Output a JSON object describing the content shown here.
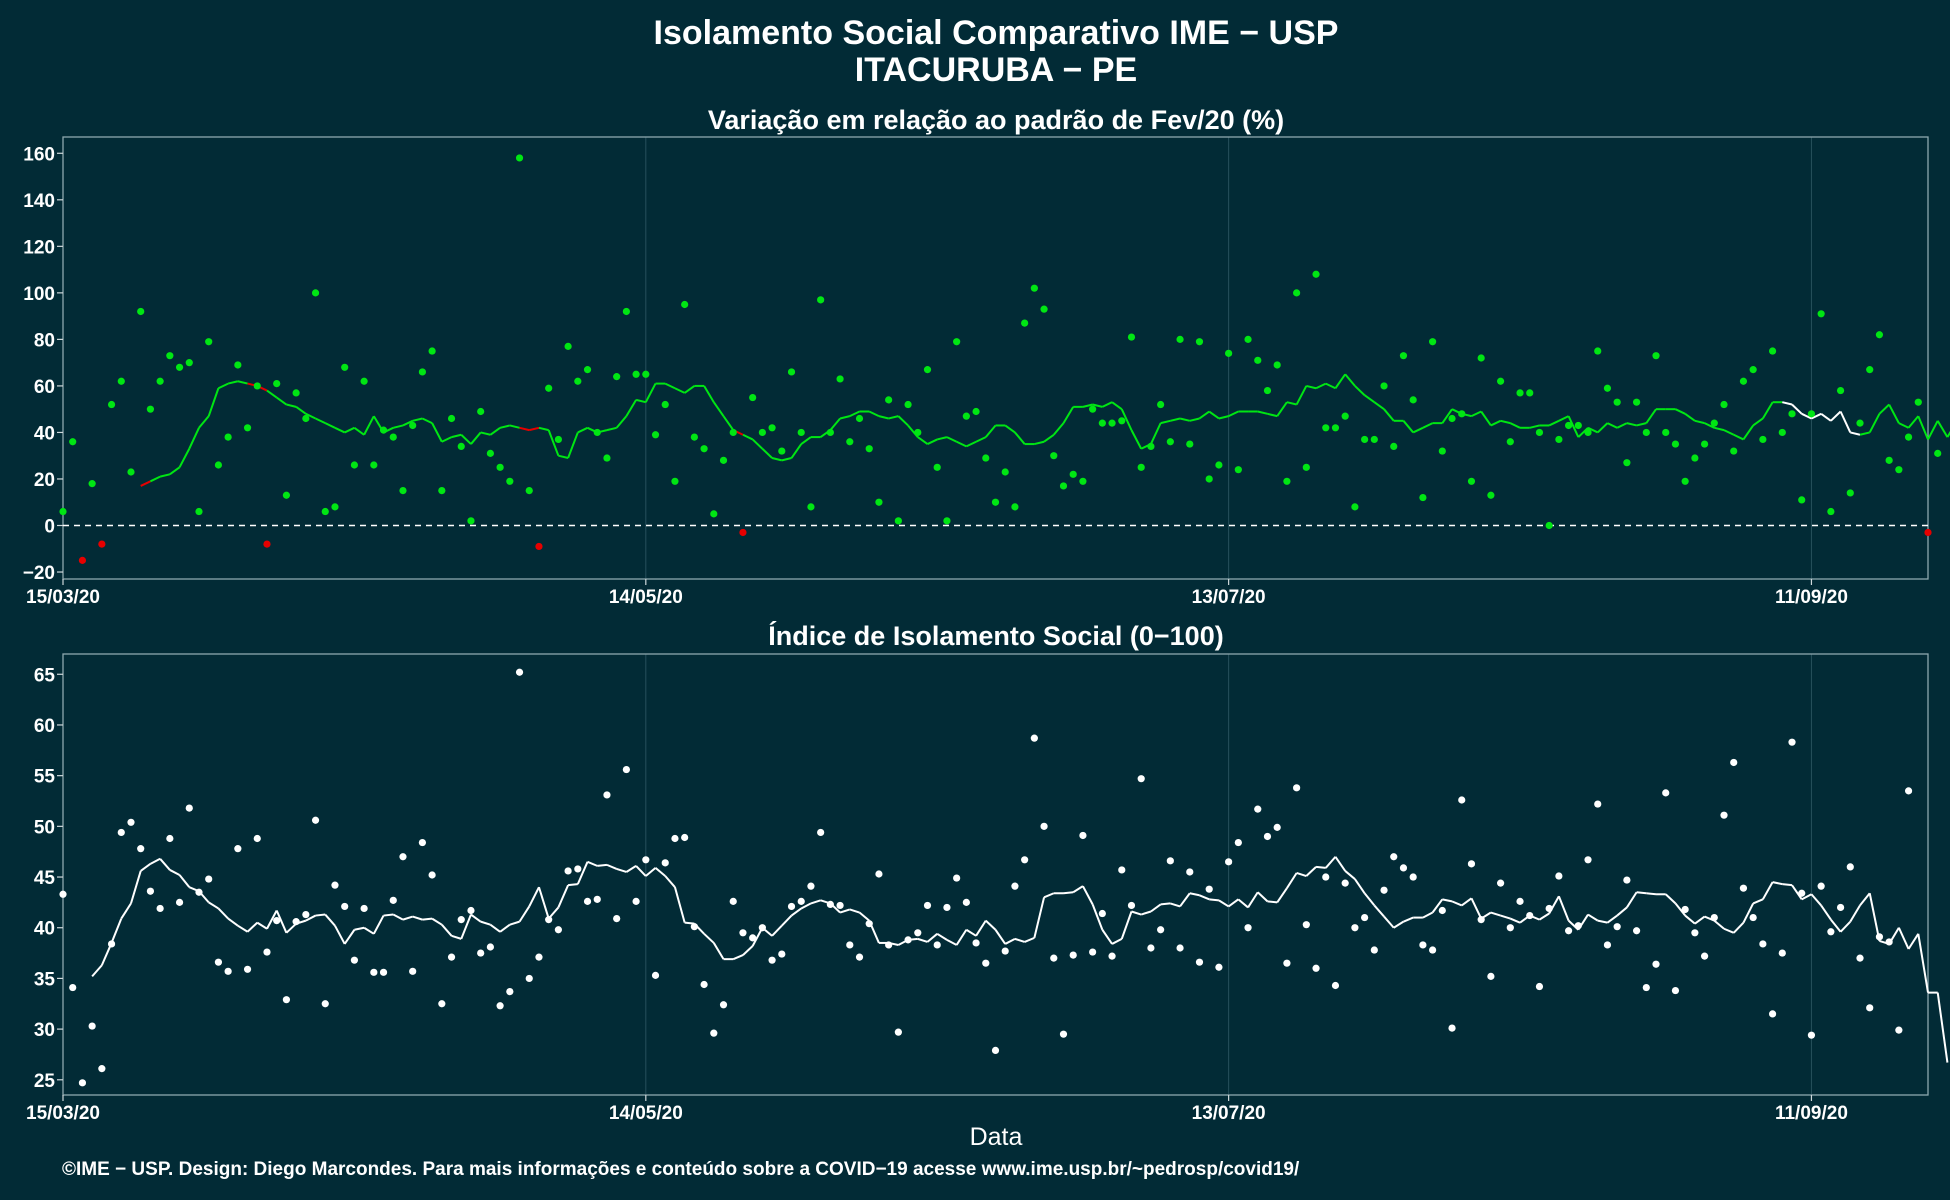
{
  "title": "Isolamento Social Comparativo IME − USP",
  "subtitle": "ITACURUBA − PE",
  "xlabel": "Data",
  "footer": "©IME − USP. Design: Diego Marcondes. Para mais informações e conteúdo sobre a COVID−19 acesse www.ime.usp.br/~pedrosp/covid19/",
  "colors": {
    "background": "#022b36",
    "positive": "#00e613",
    "negative": "#e60000",
    "index": "#ffffff"
  },
  "chart_data": [
    {
      "type": "scatter",
      "title": "Variação em relação ao padrão de Fev/20 (%)",
      "ylim": [
        -23,
        167
      ],
      "yticks": [
        -20,
        0,
        20,
        40,
        60,
        80,
        100,
        120,
        140,
        160
      ],
      "xticks": [
        {
          "day": 0,
          "label": "15/03/20"
        },
        {
          "day": 60,
          "label": "14/05/20"
        },
        {
          "day": 120,
          "label": "13/07/20"
        },
        {
          "day": 180,
          "label": "11/09/20"
        }
      ],
      "xlim": [
        0,
        192
      ],
      "reference_line": 0,
      "series": [
        {
          "values": [
            6,
            36,
            -15,
            18,
            -8,
            52,
            62,
            23,
            92,
            50,
            62,
            73,
            68,
            70,
            6,
            79,
            26,
            38,
            69,
            42,
            60,
            -8,
            61,
            13,
            57,
            46,
            100,
            6,
            8,
            68,
            26,
            62,
            26,
            41,
            38,
            15,
            43,
            66,
            75,
            15,
            46,
            34,
            2,
            49,
            31,
            25,
            19,
            158,
            15,
            -9,
            59,
            37,
            77,
            62,
            67,
            40,
            29,
            64,
            92,
            65,
            65,
            39,
            52,
            19,
            95,
            38,
            33,
            5,
            28,
            40,
            -3,
            55,
            40,
            42,
            32,
            66,
            40,
            8,
            97,
            40,
            63,
            36,
            46,
            33,
            10,
            54,
            2,
            52,
            40,
            67,
            25,
            2,
            79,
            47,
            49,
            29,
            10,
            23,
            8,
            87,
            102,
            93,
            30,
            17,
            22,
            19,
            50,
            44,
            44,
            45,
            81,
            25,
            34,
            52,
            36,
            80,
            35,
            79,
            20,
            26,
            74,
            24,
            80,
            71,
            58,
            69,
            19,
            100,
            25,
            108,
            42,
            42,
            47,
            8,
            37,
            37,
            60,
            34,
            73,
            54,
            12,
            79,
            32,
            46,
            48,
            19,
            72,
            13,
            62,
            36,
            57,
            57,
            40,
            0,
            37,
            43,
            43,
            40,
            75,
            59,
            53,
            27,
            53,
            40,
            73,
            40,
            35,
            19,
            29,
            35,
            44,
            52,
            32,
            62,
            67,
            37,
            75,
            40,
            48,
            11,
            48,
            91,
            6,
            58,
            14,
            44,
            67,
            82,
            28,
            24,
            38,
            53,
            -3,
            31
          ]
        },
        {
          "values": [
            null,
            null,
            null,
            null,
            null,
            null,
            null,
            null,
            17,
            19,
            21,
            22,
            25,
            33,
            42,
            47,
            59,
            61,
            62,
            61,
            60,
            58,
            55,
            52,
            51,
            48,
            46,
            44,
            42,
            40,
            42,
            39,
            47,
            40,
            42,
            43,
            45,
            46,
            44,
            36,
            38,
            39,
            35,
            40,
            39,
            42,
            43,
            42,
            41,
            42,
            41,
            30,
            29,
            40,
            42,
            40,
            41,
            42,
            47,
            54,
            53,
            61,
            61,
            59,
            57,
            60,
            60,
            53,
            47,
            41,
            39,
            37,
            33,
            29,
            28,
            29,
            35,
            38,
            38,
            41,
            46,
            47,
            49,
            49,
            47,
            46,
            47,
            43,
            38,
            35,
            37,
            38,
            36,
            34,
            36,
            38,
            43,
            43,
            40,
            35,
            35,
            36,
            39,
            44,
            51,
            51,
            52,
            51,
            53,
            50,
            41,
            33,
            35,
            44,
            45,
            46,
            45,
            46,
            49,
            46,
            47,
            49,
            49,
            49,
            48,
            47,
            53,
            52,
            60,
            59,
            61,
            59,
            65,
            60,
            56,
            53,
            50,
            45,
            45,
            40,
            42,
            44,
            44,
            50,
            48,
            47,
            49,
            43,
            45,
            44,
            42,
            42,
            43,
            43,
            45,
            47,
            38,
            42,
            40,
            44,
            42,
            44,
            43,
            44,
            50,
            50,
            50,
            48,
            45,
            44,
            42,
            41,
            39,
            37,
            43,
            46,
            53,
            53,
            52,
            48,
            46,
            48,
            45,
            49,
            40,
            39,
            40,
            48,
            52,
            44,
            42,
            47,
            37,
            45,
            38,
            45
          ]
        }
      ]
    },
    {
      "type": "scatter",
      "title": "Índice de Isolamento Social (0−100)",
      "ylim": [
        23.5,
        67
      ],
      "yticks": [
        25,
        30,
        35,
        40,
        45,
        50,
        55,
        60,
        65
      ],
      "xticks": [
        {
          "day": 0,
          "label": "15/03/20"
        },
        {
          "day": 60,
          "label": "14/05/20"
        },
        {
          "day": 120,
          "label": "13/07/20"
        },
        {
          "day": 180,
          "label": "11/09/20"
        }
      ],
      "xlim": [
        0,
        192
      ],
      "series": [
        {
          "values": [
            43.3,
            34.1,
            24.7,
            30.3,
            26.1,
            38.4,
            49.4,
            50.4,
            47.8,
            43.6,
            41.9,
            48.8,
            42.5,
            51.8,
            43.5,
            44.8,
            36.6,
            35.7,
            47.8,
            35.9,
            48.8,
            37.6,
            40.7,
            32.9,
            40.6,
            41.3,
            50.6,
            32.5,
            44.2,
            42.1,
            36.8,
            41.9,
            35.6,
            35.6,
            42.7,
            47.0,
            35.7,
            48.4,
            45.2,
            32.5,
            37.1,
            40.8,
            41.7,
            37.5,
            38.1,
            32.3,
            33.7,
            65.2,
            35.0,
            37.1,
            40.8,
            39.8,
            45.6,
            45.8,
            42.6,
            42.8,
            53.1,
            40.9,
            55.6,
            42.6,
            46.7,
            35.3,
            46.4,
            48.8,
            48.9,
            40.1,
            34.4,
            29.6,
            32.4,
            42.6,
            39.5,
            39.0,
            40.0,
            36.8,
            37.4,
            42.1,
            42.6,
            44.1,
            49.4,
            42.3,
            42.2,
            38.3,
            37.1,
            40.4,
            45.3,
            38.3,
            29.7,
            38.8,
            39.5,
            42.2,
            38.3,
            42.0,
            44.9,
            42.5,
            38.5,
            36.5,
            27.9,
            37.7,
            44.1,
            46.7,
            58.7,
            50.0,
            37.0,
            29.5,
            37.3,
            49.1,
            37.6,
            41.4,
            37.2,
            45.7,
            42.2,
            54.7,
            38.0,
            39.8,
            46.6,
            38.0,
            45.5,
            36.6,
            43.8,
            36.1,
            46.5,
            48.4,
            40.0,
            51.7,
            49.0,
            49.9,
            36.5,
            53.8,
            40.3,
            36.0,
            45.0,
            34.3,
            44.4,
            40.0,
            41.0,
            37.8,
            43.7,
            47.0,
            45.9,
            45.0,
            38.3,
            37.8,
            41.7,
            30.1,
            52.6,
            46.3,
            40.8,
            35.2,
            44.4,
            40.0,
            42.6,
            41.2,
            34.2,
            41.9,
            45.1,
            39.7,
            40.2,
            46.7,
            52.2,
            38.3,
            40.1,
            44.7,
            39.7,
            34.1,
            36.4,
            53.3,
            33.8,
            41.8,
            39.5,
            37.2,
            41.0,
            51.1,
            56.3,
            43.9,
            41.0,
            38.4,
            31.5,
            37.5,
            58.3,
            43.4,
            29.4,
            44.1,
            39.6,
            42.0,
            46.0,
            37.0,
            32.1,
            39.1,
            38.6,
            29.9,
            53.5
          ]
        },
        {
          "values": [
            null,
            null,
            null,
            35.2,
            36.3,
            38.5,
            40.9,
            42.4,
            45.6,
            46.3,
            46.8,
            45.7,
            45.2,
            44.0,
            43.6,
            42.5,
            41.9,
            40.9,
            40.2,
            39.6,
            40.5,
            39.9,
            41.7,
            39.5,
            40.4,
            40.7,
            41.2,
            41.3,
            40.2,
            38.4,
            39.8,
            40.0,
            39.4,
            41.2,
            41.3,
            40.8,
            41.1,
            40.8,
            40.9,
            40.3,
            39.2,
            38.9,
            41.3,
            40.6,
            40.3,
            39.6,
            40.3,
            40.6,
            42.1,
            44.0,
            40.9,
            42.0,
            44.2,
            44.3,
            46.5,
            46.1,
            46.2,
            45.8,
            45.5,
            46.1,
            45.1,
            45.9,
            45.1,
            44.0,
            40.5,
            40.4,
            39.4,
            38.5,
            36.9,
            36.9,
            37.3,
            38.2,
            40.0,
            39.2,
            40.2,
            41.2,
            41.9,
            42.4,
            42.7,
            42.4,
            41.5,
            41.8,
            41.5,
            40.7,
            38.5,
            38.5,
            38.3,
            38.8,
            38.9,
            38.6,
            39.4,
            38.8,
            38.3,
            39.8,
            39.2,
            40.7,
            39.8,
            38.4,
            38.9,
            38.6,
            39.0,
            43.0,
            43.4,
            43.4,
            43.5,
            44.1,
            42.3,
            39.8,
            38.4,
            38.9,
            41.6,
            41.3,
            41.6,
            42.3,
            42.4,
            42.1,
            43.4,
            43.2,
            42.8,
            42.7,
            42.1,
            42.8,
            42.0,
            43.5,
            42.6,
            42.5,
            43.9,
            45.4,
            45.1,
            46.0,
            45.9,
            47.0,
            45.6,
            44.8,
            43.4,
            42.2,
            41.1,
            40.0,
            40.6,
            41.0,
            41.0,
            41.5,
            42.8,
            42.6,
            42.2,
            42.9,
            40.9,
            41.5,
            41.2,
            40.9,
            40.5,
            41.2,
            40.8,
            41.4,
            43.1,
            40.7,
            39.8,
            41.3,
            40.7,
            40.5,
            41.2,
            42.0,
            43.5,
            43.4,
            43.3,
            43.3,
            42.4,
            41.2,
            40.4,
            41.1,
            40.7,
            39.9,
            39.5,
            40.5,
            42.4,
            42.8,
            44.5,
            44.3,
            44.2,
            42.8,
            43.3,
            42.2,
            40.8,
            39.6,
            40.6,
            42.2,
            43.4,
            38.7,
            38.4,
            40.0,
            37.9,
            39.4,
            33.6,
            33.6,
            26.7
          ]
        }
      ]
    }
  ]
}
